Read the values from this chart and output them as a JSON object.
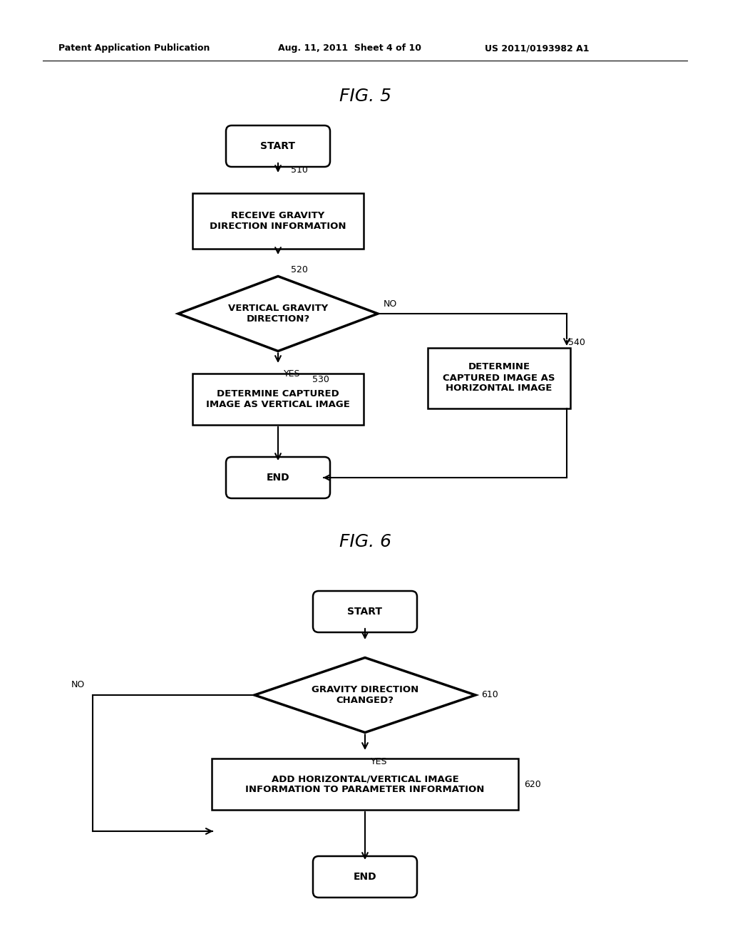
{
  "background_color": "#ffffff",
  "header_left": "Patent Application Publication",
  "header_mid": "Aug. 11, 2011  Sheet 4 of 10",
  "header_right": "US 2011/0193982 A1",
  "fig5_title": "FIG. 5",
  "fig6_title": "FIG. 6"
}
